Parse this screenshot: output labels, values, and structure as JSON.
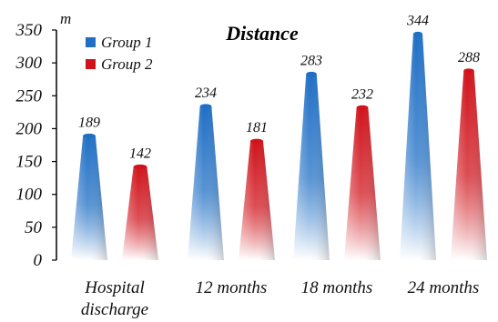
{
  "chart_data": {
    "type": "bar",
    "title": "Distance",
    "ylabel": "m",
    "xlabel": "",
    "categories": [
      "Hospital discharge",
      "12 months",
      "18 months",
      "24 months"
    ],
    "series": [
      {
        "name": "Group 1",
        "values": [
          189,
          234,
          283,
          344
        ],
        "color": "#1f6fc5"
      },
      {
        "name": "Group 2",
        "values": [
          142,
          181,
          232,
          288
        ],
        "color": "#d0131b"
      }
    ],
    "ylim": [
      0,
      350
    ],
    "yticks": [
      0,
      50,
      100,
      150,
      200,
      250,
      300,
      350
    ],
    "legend": "top-left",
    "grid": false
  }
}
